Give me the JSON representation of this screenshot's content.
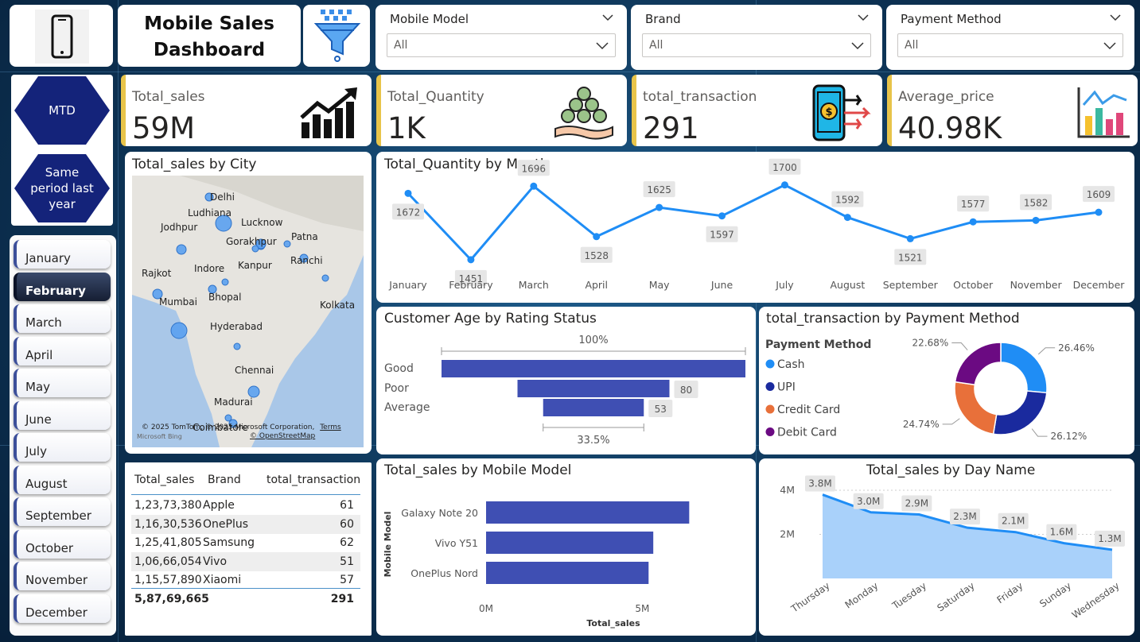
{
  "header": {
    "title_line1": "Mobile Sales",
    "title_line2": "Dashboard"
  },
  "icons": {
    "phone": "phone-icon",
    "filter": "filter-funnel-icon"
  },
  "slicers": [
    {
      "label": "Mobile Model",
      "value": "All"
    },
    {
      "label": "Brand",
      "value": "All"
    },
    {
      "label": "Payment Method",
      "value": "All"
    }
  ],
  "periods": [
    "MTD",
    "Same period last year"
  ],
  "months": {
    "selected": "February",
    "items": [
      "January",
      "February",
      "March",
      "April",
      "May",
      "June",
      "July",
      "August",
      "September",
      "October",
      "November",
      "December"
    ]
  },
  "kpis": [
    {
      "label": "Total_sales",
      "value": "59M",
      "icon": "rising-bars-icon"
    },
    {
      "label": "Total_Quantity",
      "value": "1K",
      "icon": "money-pile-icon"
    },
    {
      "label": "total_transaction",
      "value": "291",
      "icon": "mobile-payment-icon"
    },
    {
      "label": "Average_price",
      "value": "40.98K",
      "icon": "bar-chart-icon"
    }
  ],
  "map": {
    "title": "Total_sales by City",
    "cities": [
      "Delhi",
      "Ludhiana",
      "Jodhpur",
      "Lucknow",
      "Patna",
      "Gorakhpur",
      "Kanpur",
      "Ranchi",
      "Rajkot",
      "Indore",
      "Bhopal",
      "Mumbai",
      "Kolkata",
      "Hyderabad",
      "Chennai",
      "Madurai",
      "Coimbatore"
    ],
    "attribution": "© 2025 TomTom, © 2025 Microsoft Corporation,",
    "terms": "Terms",
    "osm": "© OpenStreetMap",
    "bing": "Microsoft Bing"
  },
  "table": {
    "headers": [
      "Total_sales",
      "Brand",
      "total_transaction"
    ],
    "rows": [
      {
        "sales": "1,23,73,380",
        "brand": "Apple",
        "tx": "61"
      },
      {
        "sales": "1,16,30,536",
        "brand": "OnePlus",
        "tx": "60"
      },
      {
        "sales": "1,25,41,805",
        "brand": "Samsung",
        "tx": "62"
      },
      {
        "sales": "1,06,66,054",
        "brand": "Vivo",
        "tx": "51"
      },
      {
        "sales": "1,15,57,890",
        "brand": "Xiaomi",
        "tx": "57"
      }
    ],
    "total": {
      "sales": "5,87,69,665",
      "tx": "291"
    }
  },
  "chart_titles": {
    "quantity": "Total_Quantity by Month",
    "age": "Customer Age by Rating Status",
    "payment": "total_transaction by Payment Method",
    "model": "Total_sales by Mobile Model",
    "day": "Total_sales by Day Name"
  },
  "chart_data": [
    {
      "type": "line",
      "title": "Total_Quantity by Month",
      "categories": [
        "January",
        "February",
        "March",
        "April",
        "May",
        "June",
        "July",
        "August",
        "September",
        "October",
        "November",
        "December"
      ],
      "values": [
        1672,
        1451,
        1696,
        1528,
        1625,
        1597,
        1700,
        1592,
        1521,
        1577,
        1582,
        1609
      ],
      "ylim": [
        1440,
        1710
      ],
      "color": "#1f8df5"
    },
    {
      "type": "bar",
      "title": "Customer Age by Rating Status",
      "categories": [
        "Good",
        "Poor",
        "Average"
      ],
      "values": [
        160,
        80,
        53
      ],
      "value_labels": [
        "",
        "80",
        "53"
      ],
      "top_label": "100%",
      "bottom_label": "33.5%",
      "color": "#3f4fb3"
    },
    {
      "type": "pie",
      "title": "total_transaction by Payment Method",
      "legend_title": "Payment Method",
      "categories": [
        "Cash",
        "UPI",
        "Credit Card",
        "Debit Card"
      ],
      "values": [
        26.46,
        26.12,
        24.74,
        22.68
      ],
      "labels": [
        "26.46%",
        "26.12%",
        "24.74%",
        "22.68%"
      ],
      "colors": [
        "#1f8df5",
        "#1a2a9e",
        "#e8703a",
        "#6b0a82"
      ]
    },
    {
      "type": "bar",
      "title": "Total_sales by Mobile Model",
      "categories": [
        "Galaxy Note 20",
        "Vivo Y51",
        "OnePlus Nord"
      ],
      "values": [
        6.5,
        5.35,
        5.2
      ],
      "xlabel": "Total_sales",
      "ylabel": "Mobile Model",
      "xticks": [
        "0M",
        "5M"
      ],
      "xlim": [
        0,
        7
      ],
      "color": "#3f4fb3"
    },
    {
      "type": "area",
      "title": "Total_sales by Day Name",
      "categories": [
        "Thursday",
        "Monday",
        "Tuesday",
        "Saturday",
        "Friday",
        "Sunday",
        "Wednesday"
      ],
      "values": [
        3.8,
        3.0,
        2.9,
        2.3,
        2.1,
        1.6,
        1.3
      ],
      "labels": [
        "3.8M",
        "3.0M",
        "2.9M",
        "2.3M",
        "2.1M",
        "1.6M",
        "1.3M"
      ],
      "yticks": [
        "4M",
        "2M"
      ],
      "ylim": [
        0,
        4
      ],
      "color": "#1f8df5",
      "fill": "#a9d1fa"
    }
  ]
}
